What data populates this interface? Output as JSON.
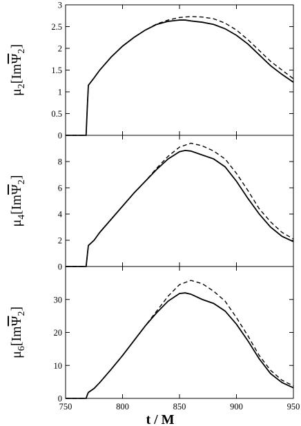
{
  "figure": {
    "xlabel": "t / M"
  },
  "chart_data": [
    {
      "type": "line",
      "panel": "top",
      "ylabel": {
        "base": "μ",
        "sub": "2",
        "open": "[Im",
        "psi": "Ψ",
        "psisub": "2",
        "close": "]"
      },
      "xlim": [
        750,
        950
      ],
      "ylim": [
        0,
        3
      ],
      "yticks": [
        0,
        0.5,
        1,
        1.5,
        2,
        2.5,
        3
      ],
      "ytick_labels": [
        "0",
        "0.5",
        "1",
        "1.5",
        "2",
        "2.5",
        "3"
      ],
      "series": [
        {
          "style": "solid",
          "x": [
            750,
            768,
            769,
            770,
            775,
            780,
            790,
            800,
            810,
            820,
            830,
            840,
            850,
            855,
            860,
            870,
            880,
            890,
            900,
            910,
            920,
            930,
            940,
            950
          ],
          "y": [
            0,
            0,
            0.6,
            1.15,
            1.32,
            1.5,
            1.8,
            2.05,
            2.25,
            2.42,
            2.55,
            2.62,
            2.65,
            2.65,
            2.63,
            2.6,
            2.55,
            2.45,
            2.3,
            2.1,
            1.85,
            1.6,
            1.4,
            1.22
          ]
        },
        {
          "style": "dashed",
          "x": [
            750,
            768,
            769,
            770,
            775,
            780,
            790,
            800,
            810,
            820,
            830,
            840,
            850,
            860,
            870,
            880,
            890,
            900,
            910,
            920,
            930,
            940,
            950
          ],
          "y": [
            0,
            0,
            0.6,
            1.15,
            1.32,
            1.5,
            1.8,
            2.05,
            2.25,
            2.42,
            2.56,
            2.65,
            2.71,
            2.73,
            2.72,
            2.68,
            2.58,
            2.42,
            2.2,
            1.95,
            1.7,
            1.5,
            1.3
          ]
        }
      ]
    },
    {
      "type": "line",
      "panel": "middle",
      "ylabel": {
        "base": "μ",
        "sub": "4",
        "open": "[Im",
        "psi": "Ψ",
        "psisub": "2",
        "close": "]"
      },
      "xlim": [
        750,
        950
      ],
      "ylim": [
        0,
        10
      ],
      "yticks": [
        0,
        2,
        4,
        6,
        8
      ],
      "ytick_labels": [
        "0",
        "2",
        "4",
        "6",
        "8"
      ],
      "series": [
        {
          "style": "solid",
          "x": [
            750,
            768,
            769,
            770,
            775,
            780,
            790,
            800,
            810,
            820,
            830,
            840,
            850,
            855,
            860,
            870,
            880,
            890,
            900,
            910,
            920,
            930,
            940,
            950
          ],
          "y": [
            0,
            0,
            0.8,
            1.6,
            2.0,
            2.6,
            3.6,
            4.6,
            5.6,
            6.5,
            7.4,
            8.2,
            8.75,
            8.85,
            8.8,
            8.5,
            8.2,
            7.6,
            6.5,
            5.2,
            4.0,
            3.0,
            2.3,
            1.9
          ]
        },
        {
          "style": "dashed",
          "x": [
            750,
            768,
            769,
            770,
            775,
            780,
            790,
            800,
            810,
            820,
            830,
            840,
            850,
            860,
            870,
            880,
            890,
            900,
            910,
            920,
            930,
            940,
            950
          ],
          "y": [
            0,
            0,
            0.8,
            1.6,
            2.0,
            2.6,
            3.6,
            4.6,
            5.6,
            6.5,
            7.5,
            8.4,
            9.1,
            9.4,
            9.2,
            8.8,
            8.2,
            7.1,
            5.8,
            4.4,
            3.4,
            2.6,
            2.1
          ]
        }
      ]
    },
    {
      "type": "line",
      "panel": "bottom",
      "ylabel": {
        "base": "μ",
        "sub": "6",
        "open": "[Im",
        "psi": "Ψ",
        "psisub": "2",
        "close": "]"
      },
      "xlim": [
        750,
        950
      ],
      "ylim": [
        0,
        40
      ],
      "xticks": [
        750,
        800,
        850,
        900,
        950
      ],
      "xtick_labels": [
        "750",
        "800",
        "850",
        "900",
        "950"
      ],
      "yticks": [
        0,
        10,
        20,
        30
      ],
      "ytick_labels": [
        "0",
        "10",
        "20",
        "30"
      ],
      "series": [
        {
          "style": "solid",
          "x": [
            750,
            768,
            769,
            770,
            775,
            780,
            790,
            800,
            810,
            820,
            830,
            840,
            850,
            855,
            860,
            870,
            880,
            890,
            900,
            910,
            920,
            930,
            940,
            950
          ],
          "y": [
            0,
            0,
            1.0,
            1.8,
            3.0,
            4.8,
            8.8,
            13.0,
            17.5,
            22.0,
            26.0,
            29.5,
            31.8,
            32.0,
            31.6,
            30.0,
            28.8,
            26.5,
            22.5,
            17.5,
            12.0,
            7.5,
            4.8,
            3.2
          ]
        },
        {
          "style": "dashed",
          "x": [
            750,
            768,
            769,
            770,
            775,
            780,
            790,
            800,
            810,
            820,
            830,
            840,
            850,
            860,
            870,
            880,
            890,
            900,
            910,
            920,
            930,
            940,
            950
          ],
          "y": [
            0,
            0,
            1.0,
            1.8,
            3.0,
            4.8,
            8.8,
            13.0,
            17.5,
            22.0,
            26.5,
            31.0,
            34.5,
            35.8,
            34.8,
            32.5,
            29.5,
            24.5,
            19.0,
            13.0,
            8.5,
            5.5,
            3.8
          ]
        }
      ]
    }
  ]
}
